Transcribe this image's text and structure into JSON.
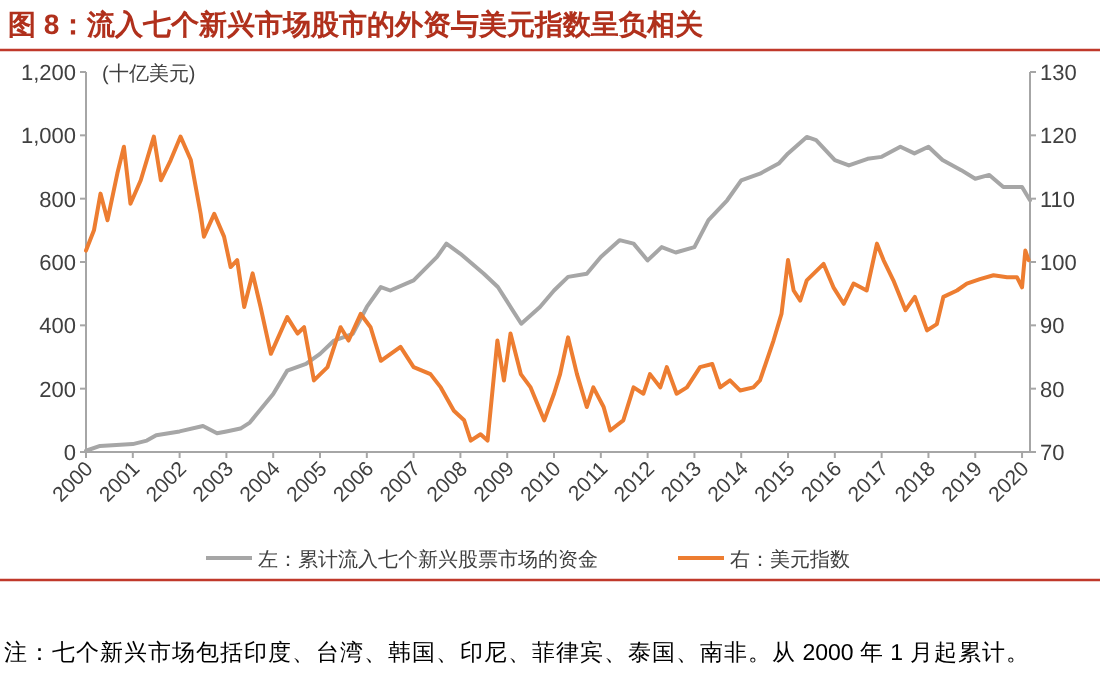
{
  "chart_data": {
    "type": "line",
    "title": "图 8：流入七个新兴市场股市的外资与美元指数呈负相关",
    "ylabel": "(十亿美元)",
    "annotations": [
      "注：七个新兴市场包括印度、台湾、韩国、印尼、菲律宾、泰国、南非。从 2000 年 1 月起累计。"
    ],
    "xlim": [
      2000,
      2020.17
    ],
    "xticks": [
      2000,
      2001,
      2002,
      2003,
      2004,
      2005,
      2006,
      2007,
      2008,
      2009,
      2010,
      2011,
      2012,
      2013,
      2014,
      2015,
      2016,
      2017,
      2018,
      2019,
      2020
    ],
    "ylim": [
      0,
      1200
    ],
    "yticks": [
      {
        "value": 0,
        "label": "0"
      },
      {
        "value": 200,
        "label": "200"
      },
      {
        "value": 400,
        "label": "400"
      },
      {
        "value": 600,
        "label": "600"
      },
      {
        "value": 800,
        "label": "800"
      },
      {
        "value": 1000,
        "label": "1,000"
      },
      {
        "value": 1200,
        "label": "1,200"
      }
    ],
    "y2lim": [
      70,
      130
    ],
    "y2ticks": [
      70,
      80,
      90,
      100,
      110,
      120,
      130
    ],
    "legend": "bottom",
    "series": [
      {
        "name": "左：累计流入七个新兴股票市场的资金",
        "color": "#a6a6a6",
        "x": [
          2000.0,
          2000.3,
          2001.0,
          2001.3,
          2001.5,
          2002.0,
          2002.5,
          2002.8,
          2003.0,
          2003.3,
          2003.5,
          2004.0,
          2004.3,
          2004.7,
          2005.0,
          2005.3,
          2005.7,
          2006.0,
          2006.3,
          2006.5,
          2007.0,
          2007.5,
          2007.7,
          2008.0,
          2008.5,
          2008.8,
          2009.3,
          2009.7,
          2010.0,
          2010.3,
          2010.7,
          2011.0,
          2011.4,
          2011.7,
          2012.0,
          2012.3,
          2012.6,
          2013.0,
          2013.3,
          2013.7,
          2014.0,
          2014.4,
          2014.8,
          2015.0,
          2015.4,
          2015.6,
          2016.0,
          2016.3,
          2016.7,
          2017.0,
          2017.4,
          2017.7,
          2018.0,
          2018.3,
          2018.7,
          2019.0,
          2019.3,
          2019.6,
          2020.0,
          2020.17
        ],
        "values": [
          4,
          19,
          25,
          36,
          53,
          65,
          82,
          59,
          65,
          74,
          93,
          183,
          257,
          278,
          310,
          352,
          373,
          458,
          521,
          510,
          542,
          616,
          658,
          626,
          563,
          521,
          405,
          458,
          510,
          553,
          563,
          616,
          669,
          658,
          605,
          647,
          630,
          647,
          732,
          795,
          858,
          879,
          911,
          943,
          995,
          985,
          922,
          905,
          926,
          932,
          964,
          943,
          964,
          922,
          890,
          863,
          875,
          837,
          837,
          795
        ]
      },
      {
        "name": "右：美元指数",
        "color": "#ed7d31",
        "axis": "y2",
        "x": [
          2000.0,
          2000.17,
          2000.31,
          2000.46,
          2000.67,
          2000.81,
          2000.95,
          2001.17,
          2001.45,
          2001.6,
          2001.81,
          2002.02,
          2002.24,
          2002.45,
          2002.52,
          2002.74,
          2002.95,
          2003.09,
          2003.23,
          2003.38,
          2003.56,
          2003.73,
          2003.95,
          2004.3,
          2004.52,
          2004.66,
          2004.87,
          2005.16,
          2005.44,
          2005.61,
          2005.87,
          2006.08,
          2006.3,
          2006.72,
          2007.0,
          2007.36,
          2007.58,
          2007.86,
          2008.08,
          2008.22,
          2008.43,
          2008.58,
          2008.79,
          2008.93,
          2009.07,
          2009.29,
          2009.5,
          2009.79,
          2010.0,
          2010.13,
          2010.3,
          2010.49,
          2010.7,
          2010.84,
          2011.06,
          2011.2,
          2011.48,
          2011.7,
          2011.91,
          2012.05,
          2012.27,
          2012.41,
          2012.62,
          2012.84,
          2013.12,
          2013.38,
          2013.55,
          2013.76,
          2013.98,
          2014.26,
          2014.4,
          2014.69,
          2014.86,
          2015.0,
          2015.12,
          2015.26,
          2015.4,
          2015.76,
          2015.97,
          2016.19,
          2016.4,
          2016.68,
          2016.9,
          2017.04,
          2017.25,
          2017.51,
          2017.71,
          2017.97,
          2018.18,
          2018.32,
          2018.61,
          2018.82,
          2019.1,
          2019.39,
          2019.68,
          2019.89,
          2020.0,
          2020.07,
          2020.14
        ],
        "values": [
          101.8,
          105.0,
          110.8,
          106.6,
          114.0,
          118.2,
          109.2,
          112.9,
          119.8,
          112.9,
          116.1,
          119.8,
          116.1,
          107.6,
          104.0,
          107.6,
          104.0,
          99.2,
          100.3,
          92.9,
          98.2,
          92.9,
          85.5,
          91.3,
          88.7,
          89.7,
          81.3,
          83.4,
          89.7,
          87.6,
          91.8,
          89.7,
          84.4,
          86.6,
          83.4,
          82.3,
          80.2,
          76.5,
          75.0,
          71.8,
          72.8,
          71.8,
          87.6,
          81.3,
          88.7,
          82.3,
          80.2,
          75.0,
          79.2,
          82.3,
          88.1,
          82.3,
          77.1,
          80.2,
          77.1,
          73.4,
          75.0,
          80.2,
          79.2,
          82.3,
          80.2,
          83.4,
          79.2,
          80.2,
          83.4,
          83.9,
          80.2,
          81.3,
          79.7,
          80.2,
          81.3,
          87.6,
          91.8,
          100.3,
          95.5,
          93.9,
          97.1,
          99.7,
          96.0,
          93.4,
          96.6,
          95.5,
          102.9,
          100.3,
          97.1,
          92.4,
          94.5,
          89.2,
          90.2,
          94.5,
          95.5,
          96.6,
          97.3,
          97.9,
          97.6,
          97.6,
          96.0,
          101.8,
          100.3
        ]
      }
    ]
  }
}
